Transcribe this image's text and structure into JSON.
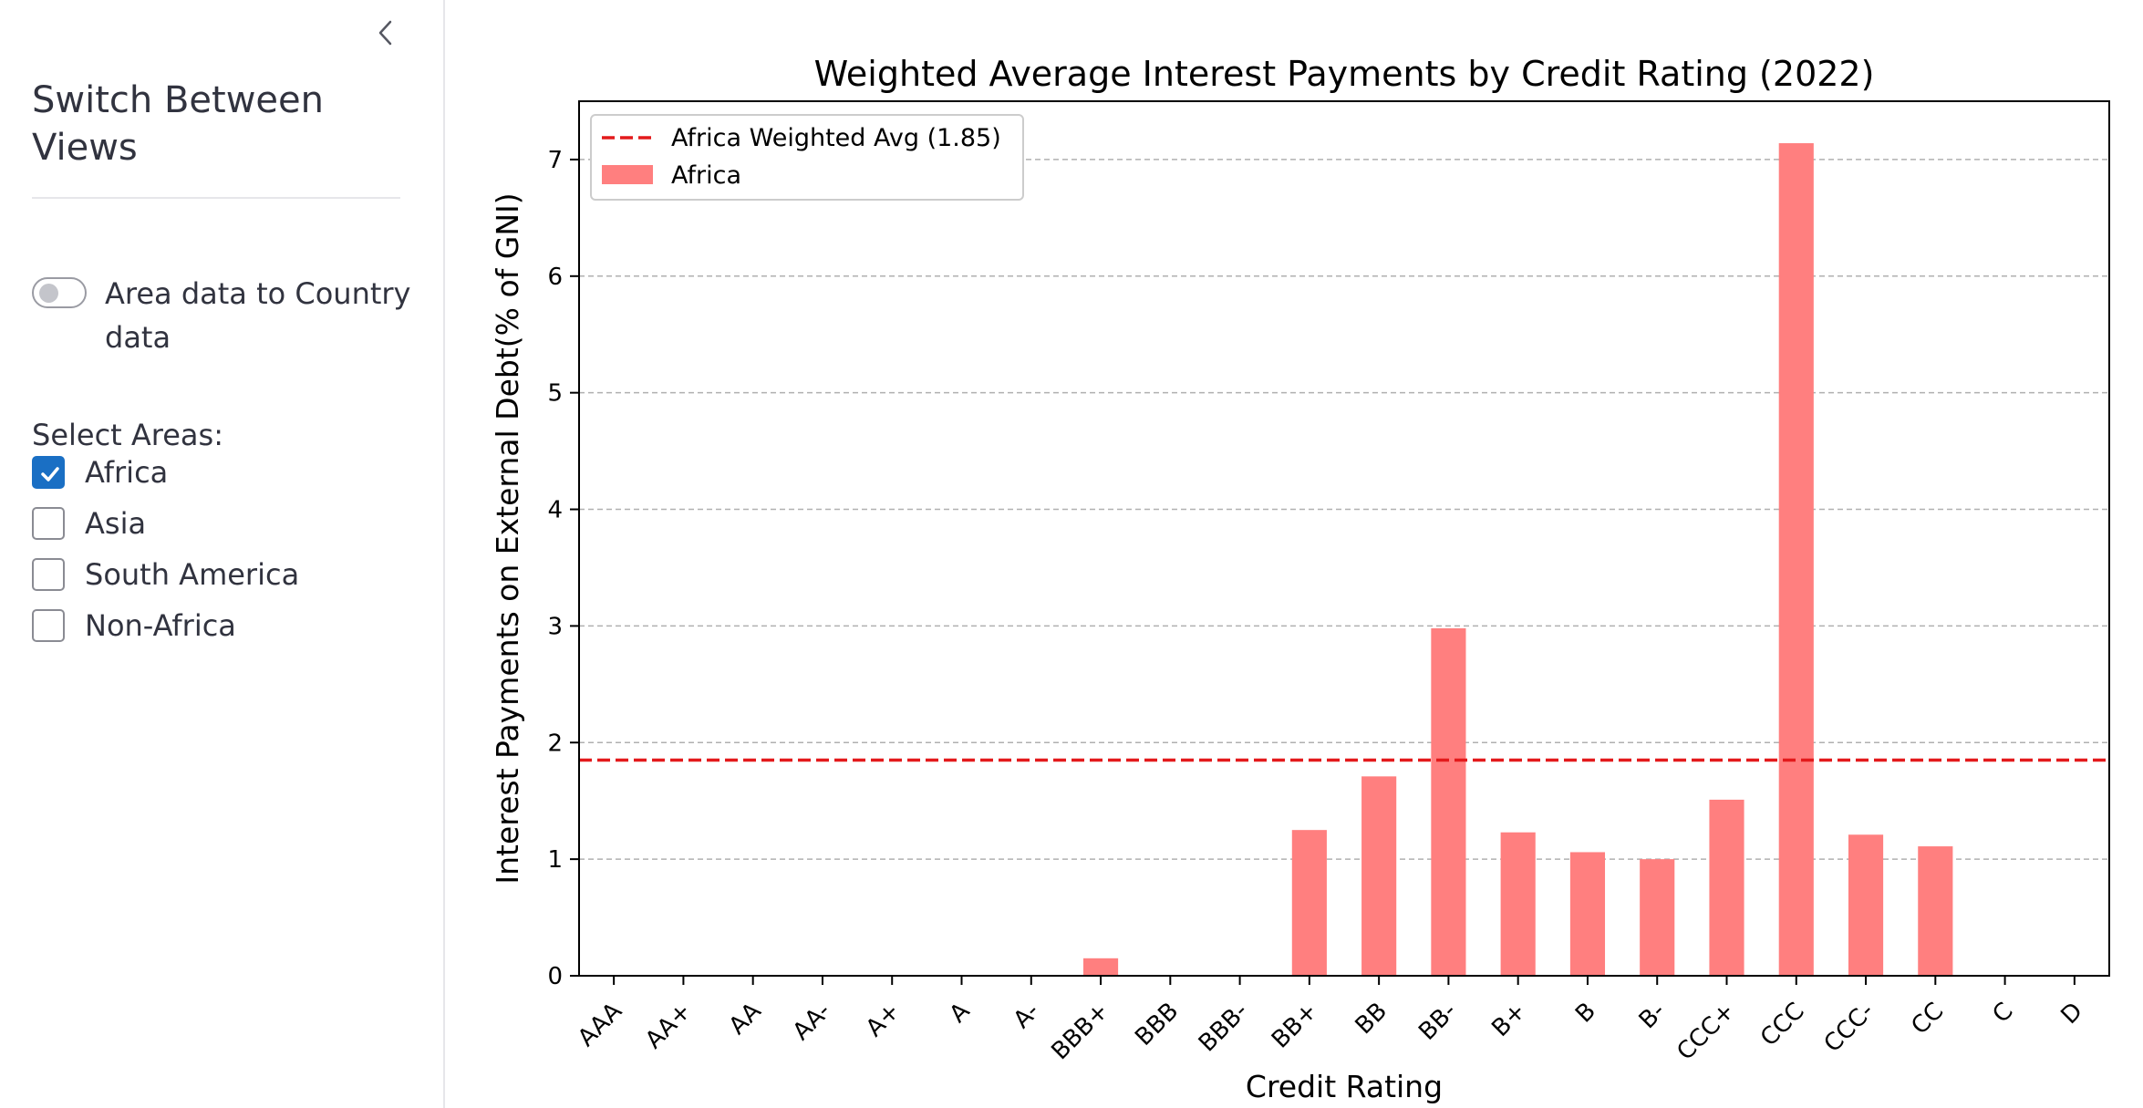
{
  "sidebar": {
    "collapse_icon": "chevron-left-icon",
    "title": "Switch Between Views",
    "toggle": {
      "label": "Area data to Country data",
      "on": false
    },
    "areas_label": "Select Areas:",
    "areas": [
      {
        "label": "Africa",
        "checked": true
      },
      {
        "label": "Asia",
        "checked": false
      },
      {
        "label": "South America",
        "checked": false
      },
      {
        "label": "Non-Africa",
        "checked": false
      }
    ]
  },
  "colors": {
    "checkbox_accent": "#1a6fc4",
    "bar": "#ff7f7f",
    "average_line": "#e31a1c"
  },
  "chart_data": {
    "type": "bar",
    "title": "Weighted Average Interest Payments by Credit Rating (2022)",
    "xlabel": "Credit Rating",
    "ylabel": "Interest Payments on External Debt(% of GNI)",
    "categories": [
      "AAA",
      "AA+",
      "AA",
      "AA-",
      "A+",
      "A",
      "A-",
      "BBB+",
      "BBB",
      "BBB-",
      "BB+",
      "BB",
      "BB-",
      "B+",
      "B",
      "B-",
      "CCC+",
      "CCC",
      "CCC-",
      "CC",
      "C",
      "D"
    ],
    "series": [
      {
        "name": "Africa",
        "values": [
          0,
          0,
          0,
          0,
          0,
          0,
          0,
          0.15,
          0,
          0,
          1.25,
          1.71,
          2.98,
          1.23,
          1.06,
          1.0,
          1.51,
          7.14,
          1.21,
          1.11,
          0,
          0
        ]
      }
    ],
    "reference_lines": [
      {
        "name": "Africa Weighted Avg (1.85)",
        "value": 1.85,
        "style": "dashed"
      }
    ],
    "ylim": [
      0,
      7.5
    ],
    "yticks": [
      0,
      1,
      2,
      3,
      4,
      5,
      6,
      7
    ],
    "grid": "horizontal dashed",
    "legend_position": "upper left"
  }
}
